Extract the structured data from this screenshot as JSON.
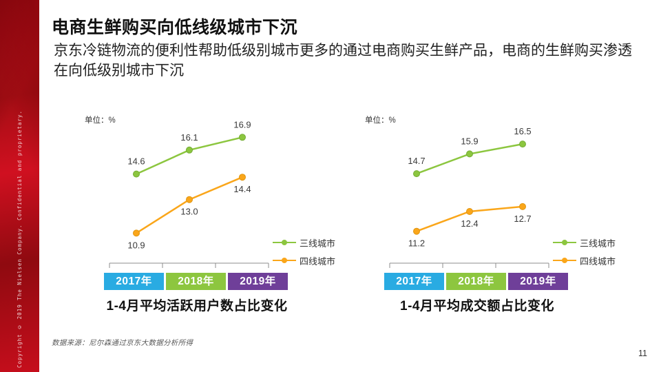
{
  "sidebar": {
    "copyright": "Copyright © 2019 The Nielsen Company. Confidential and proprietary.",
    "color": "#c8102e"
  },
  "header": {
    "title": "电商生鲜购买向低线级城市下沉",
    "subtitle": "京东冷链物流的便利性帮助低级别城市更多的通过电商购买生鲜产品，电商的生鲜购买渗透在向低级别城市下沉"
  },
  "chart_data": [
    {
      "type": "line",
      "title": "1-4月平均活跃用户数占比变化",
      "unit_label": "单位：%",
      "categories": [
        "2017年",
        "2018年",
        "2019年"
      ],
      "category_colors": [
        "#29abe2",
        "#8dc63f",
        "#6f3f99"
      ],
      "series": [
        {
          "name": "三线城市",
          "values": [
            14.6,
            16.1,
            16.9
          ],
          "color": "#8cc63f",
          "marker_stroke": "#74ad36"
        },
        {
          "name": "四线城市",
          "values": [
            10.9,
            13.0,
            14.4
          ],
          "color": "#faa61a",
          "marker_stroke": "#e09612"
        }
      ],
      "ylim": [
        10.4,
        17.3
      ],
      "grid": false,
      "legend_position": "right"
    },
    {
      "type": "line",
      "title": "1-4月平均成交额占比变化",
      "unit_label": "单位：%",
      "categories": [
        "2017年",
        "2018年",
        "2019年"
      ],
      "category_colors": [
        "#29abe2",
        "#8dc63f",
        "#6f3f99"
      ],
      "series": [
        {
          "name": "三线城市",
          "values": [
            14.7,
            15.9,
            16.5
          ],
          "color": "#8cc63f",
          "marker_stroke": "#74ad36"
        },
        {
          "name": "四线城市",
          "values": [
            11.2,
            12.4,
            12.7
          ],
          "color": "#faa61a",
          "marker_stroke": "#e09612"
        }
      ],
      "ylim": [
        10.6,
        17.3
      ],
      "grid": false,
      "legend_position": "right"
    }
  ],
  "footer": {
    "source_note": "数据来源：尼尔森通过京东大数据分析所得",
    "page_number": "11"
  }
}
